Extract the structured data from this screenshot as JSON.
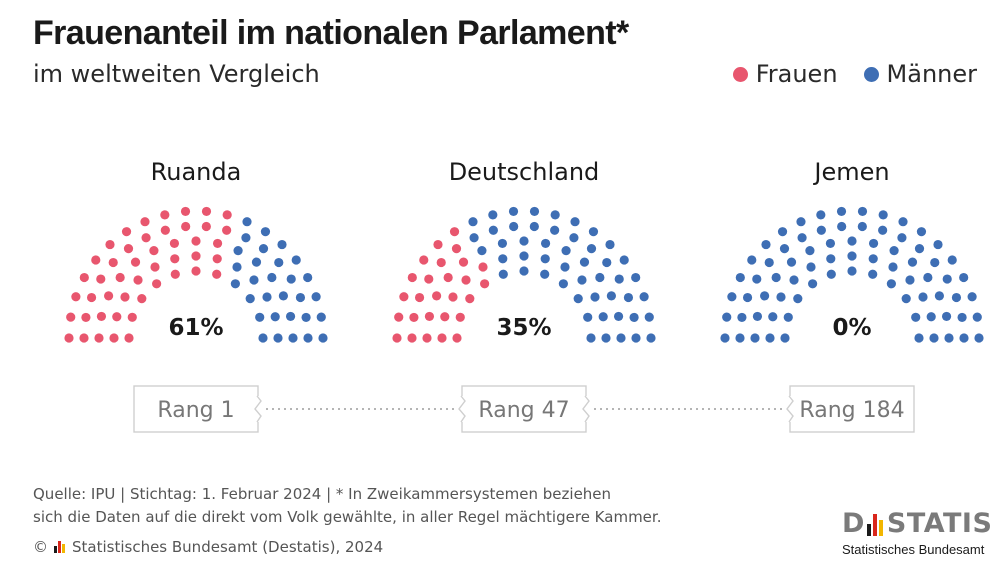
{
  "header": {
    "title": "Frauenanteil im nationalen Parlament*",
    "subtitle": "im weltweiten Vergleich"
  },
  "legend": [
    {
      "label": "Frauen",
      "color": "#e8566e"
    },
    {
      "label": "Männer",
      "color": "#3e6eb4"
    }
  ],
  "chart_data": {
    "type": "parliament",
    "series_names": [
      "Frauen",
      "Männer"
    ],
    "colors": {
      "Frauen": "#e8566e",
      "Männer": "#3e6eb4"
    },
    "countries": [
      {
        "name": "Ruanda",
        "women_share_pct": 61,
        "value_label": "61%",
        "rank_label": "Rang 1"
      },
      {
        "name": "Deutschland",
        "women_share_pct": 35,
        "value_label": "35%",
        "rank_label": "Rang 47"
      },
      {
        "name": "Jemen",
        "women_share_pct": 0,
        "value_label": "0%",
        "rank_label": "Rang 184"
      }
    ]
  },
  "footer": {
    "source_line1": "Quelle: IPU | Stichtag: 1. Februar 2024 | * In Zweikammersystemen beziehen",
    "source_line2": "sich die Daten auf die direkt vom Volk gewählte, in aller Regel mächtigere Kammer.",
    "copyright": "Statistisches Bundesamt (Destatis), 2024",
    "copyright_symbol": "©",
    "brand_logo_left": "D",
    "brand_logo_right": "STATIS",
    "brand_name": "Statistisches Bundesamt"
  }
}
